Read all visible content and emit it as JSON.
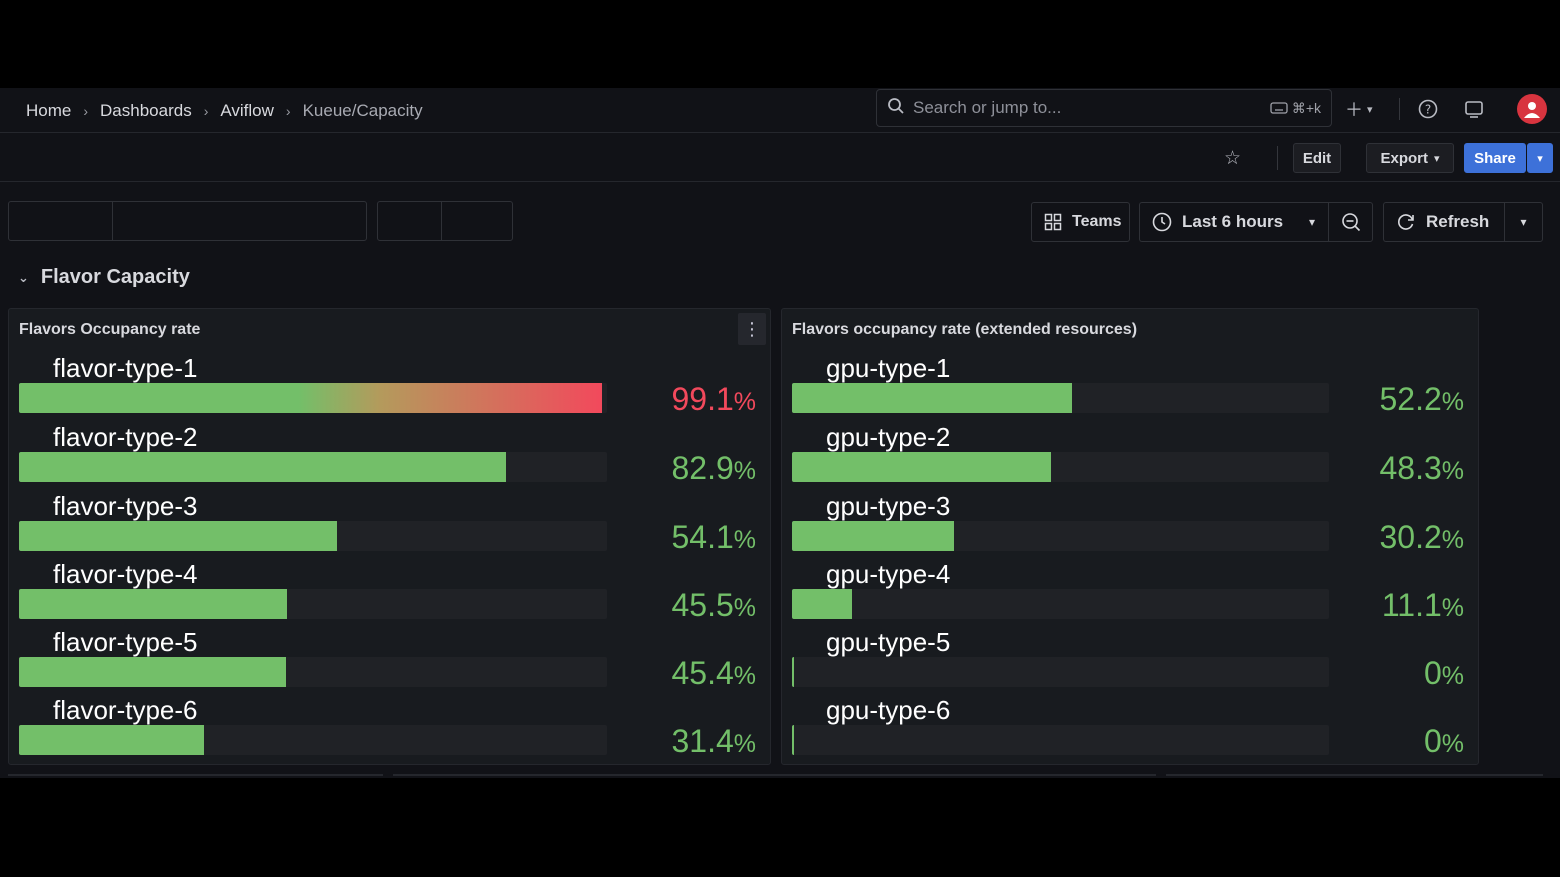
{
  "breadcrumb": [
    "Home",
    "Dashboards",
    "Aviflow",
    "Kueue/Capacity"
  ],
  "search": {
    "placeholder": "Search or jump to...",
    "shortcut": "⌘+k"
  },
  "toolbar": {
    "edit_label": "Edit",
    "export_label": "Export",
    "share_label": "Share"
  },
  "controls": {
    "teams_label": "Teams",
    "time_range_label": "Last 6 hours",
    "refresh_label": "Refresh"
  },
  "row": {
    "title": "Flavor Capacity"
  },
  "panels": {
    "left": {
      "title": "Flavors Occupancy rate",
      "items": [
        {
          "label": "flavor-type-1",
          "value": "99.1",
          "unit": "%",
          "fraction": 0.991,
          "color": "red"
        },
        {
          "label": "flavor-type-2",
          "value": "82.9",
          "unit": "%",
          "fraction": 0.829,
          "color": "green"
        },
        {
          "label": "flavor-type-3",
          "value": "54.1",
          "unit": "%",
          "fraction": 0.541,
          "color": "green"
        },
        {
          "label": "flavor-type-4",
          "value": "45.5",
          "unit": "%",
          "fraction": 0.455,
          "color": "green"
        },
        {
          "label": "flavor-type-5",
          "value": "45.4",
          "unit": "%",
          "fraction": 0.454,
          "color": "green"
        },
        {
          "label": "flavor-type-6",
          "value": "31.4",
          "unit": "%",
          "fraction": 0.314,
          "color": "green"
        }
      ]
    },
    "right": {
      "title": "Flavors occupancy rate (extended resources)",
      "items": [
        {
          "label": "gpu-type-1",
          "value": "52.2",
          "unit": "%",
          "fraction": 0.522,
          "color": "green"
        },
        {
          "label": "gpu-type-2",
          "value": "48.3",
          "unit": "%",
          "fraction": 0.483,
          "color": "green"
        },
        {
          "label": "gpu-type-3",
          "value": "30.2",
          "unit": "%",
          "fraction": 0.302,
          "color": "green"
        },
        {
          "label": "gpu-type-4",
          "value": "11.1",
          "unit": "%",
          "fraction": 0.111,
          "color": "green"
        },
        {
          "label": "gpu-type-5",
          "value": "0",
          "unit": "%",
          "fraction": 0.0,
          "color": "green"
        },
        {
          "label": "gpu-type-6",
          "value": "0",
          "unit": "%",
          "fraction": 0.0,
          "color": "green"
        }
      ]
    }
  },
  "colors": {
    "green": "#73bf69",
    "red": "#f2495c",
    "accent": "#3d71d9"
  }
}
